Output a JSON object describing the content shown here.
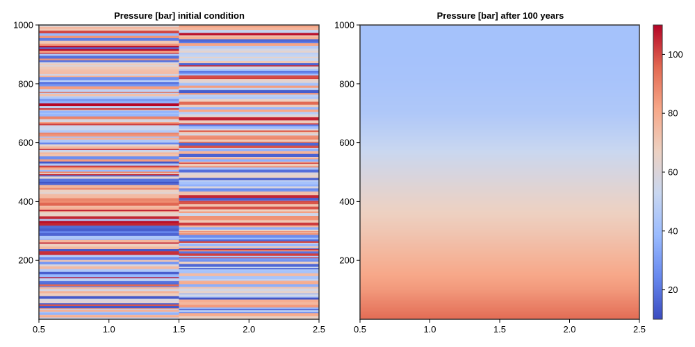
{
  "chart_data": [
    {
      "type": "heatmap",
      "title": "Pressure [bar] initial condition",
      "xlabel": "",
      "ylabel": "",
      "xlim": [
        0.5,
        2.5
      ],
      "ylim": [
        0,
        1000
      ],
      "x_ticks": [
        "0.5",
        "1.0",
        "1.5",
        "2.0",
        "2.5"
      ],
      "y_ticks": [
        "200",
        "400",
        "600",
        "800",
        "1000"
      ],
      "columns": [
        {
          "x_range": [
            0.5,
            1.5
          ],
          "pattern": "random horizontal strata",
          "value_range": [
            10,
            110
          ],
          "mean": 60
        },
        {
          "x_range": [
            1.5,
            2.5
          ],
          "pattern": "random horizontal strata",
          "value_range": [
            10,
            110
          ],
          "mean": 62
        }
      ],
      "colormap": "coolwarm"
    },
    {
      "type": "heatmap",
      "title": "Pressure [bar] after 100 years",
      "xlabel": "",
      "ylabel": "",
      "xlim": [
        0.5,
        2.5
      ],
      "ylim": [
        0,
        1000
      ],
      "x_ticks": [
        "0.5",
        "1.0",
        "1.5",
        "2.0",
        "2.5"
      ],
      "y_ticks": [
        "200",
        "400",
        "600",
        "800",
        "1000"
      ],
      "profile": {
        "depth": [
          0,
          100,
          200,
          300,
          400,
          500,
          600,
          700,
          800,
          900,
          1000
        ],
        "pressure": [
          95,
          85,
          78,
          71,
          65,
          58,
          51,
          45,
          43,
          42,
          42
        ]
      },
      "colormap": "coolwarm"
    }
  ],
  "colorbar": {
    "range": [
      10,
      110
    ],
    "ticks": [
      "20",
      "40",
      "60",
      "80",
      "100"
    ],
    "colormap": "coolwarm"
  },
  "colors": {
    "frame": "#333333",
    "cmap_stops": [
      "#3b4cc0",
      "#6788ee",
      "#9abbff",
      "#c9d7f0",
      "#edd1c2",
      "#f7a889",
      "#e26952",
      "#b40426"
    ]
  }
}
